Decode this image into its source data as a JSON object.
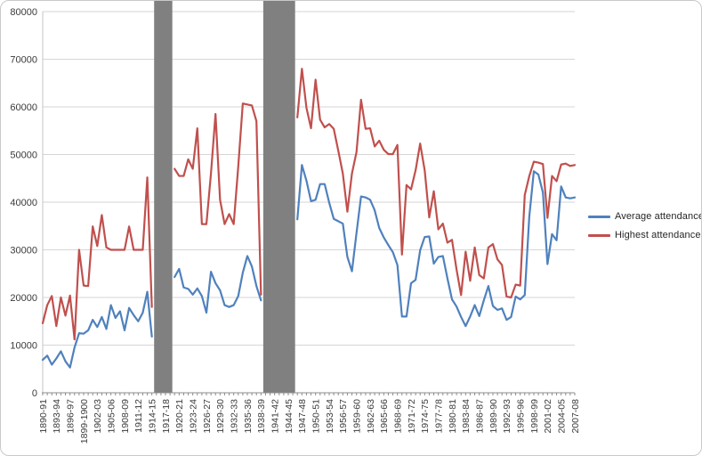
{
  "chart_data": {
    "type": "line",
    "title": "",
    "xlabel": "",
    "ylabel": "",
    "legend_position": "right",
    "grid": true,
    "background_color": "#FFFFFF",
    "gridline_color": "#D6D6D6",
    "axis_color": "#8C8C8C",
    "y_axis_line_color": "#C4C4C4",
    "text_color": "#3A3A3A",
    "band_color": "#808080",
    "y_axis": {
      "min": 0,
      "max": 80000,
      "step": 10000,
      "tick_labels": [
        "0",
        "10000",
        "20000",
        "30000",
        "40000",
        "50000",
        "60000",
        "70000",
        "80000"
      ]
    },
    "x_axis": {
      "label_every_n_points": 3,
      "tick_labels": [
        "1890-91",
        "1893-94",
        "1896-97",
        "1899-1900",
        "1902-03",
        "1905-06",
        "1908-09",
        "1911-12",
        "1914-15",
        "1917-18",
        "1920-21",
        "1923-24",
        "1926-27",
        "1929-30",
        "1932-33",
        "1935-36",
        "1938-39",
        "1941-42",
        "1944-45",
        "1947-48",
        "1950-51",
        "1953-54",
        "1956-57",
        "1959-60",
        "1962-63",
        "1965-66",
        "1968-69",
        "1971-72",
        "1974-75",
        "1977-78",
        "1980-81",
        "1983-84",
        "1986-87",
        "1989-90",
        "1992-93",
        "1995-96",
        "1998-99",
        "2001-02",
        "2004-05",
        "2007-08"
      ]
    },
    "no_data_bands": [
      {
        "start_index": 25,
        "end_index": 28
      },
      {
        "start_index": 49,
        "end_index": 55
      }
    ],
    "series": [
      {
        "name": "Average attendance",
        "color": "#4F81BD",
        "values": [
          6900,
          7800,
          5900,
          7200,
          8700,
          6600,
          5300,
          9500,
          12500,
          12400,
          13100,
          15300,
          13800,
          15900,
          13400,
          18400,
          15700,
          17100,
          13100,
          17800,
          16300,
          15000,
          16800,
          21200,
          11800,
          null,
          null,
          null,
          null,
          24300,
          26000,
          22100,
          21800,
          20600,
          21900,
          20300,
          16800,
          25400,
          23000,
          21500,
          18400,
          18000,
          18400,
          20300,
          25200,
          28700,
          26500,
          22400,
          19400,
          null,
          null,
          null,
          null,
          null,
          null,
          null,
          36400,
          47800,
          44500,
          40200,
          40500,
          43800,
          43800,
          39900,
          36500,
          36000,
          35500,
          28500,
          25500,
          33500,
          41200,
          41000,
          40500,
          38300,
          34600,
          32600,
          31000,
          29500,
          26800,
          16000,
          16000,
          23000,
          23700,
          29900,
          32700,
          32800,
          27100,
          28500,
          28700,
          24000,
          19600,
          18100,
          15900,
          14000,
          16000,
          18400,
          16100,
          19400,
          22400,
          18200,
          17400,
          17700,
          15300,
          15900,
          20200,
          19600,
          20500,
          37000,
          46500,
          45800,
          42000,
          27000,
          33300,
          32000,
          43300,
          41000,
          40800,
          41000
        ]
      },
      {
        "name": "Highest attendance",
        "color": "#C0504D",
        "values": [
          14600,
          18400,
          20300,
          14000,
          20000,
          16200,
          20400,
          11200,
          30000,
          22500,
          22400,
          34900,
          30800,
          37300,
          30500,
          30000,
          30000,
          30000,
          30000,
          34900,
          30000,
          30000,
          30000,
          45200,
          18000,
          null,
          null,
          null,
          null,
          47000,
          45500,
          45500,
          49000,
          47000,
          55500,
          35400,
          35400,
          46000,
          58500,
          40500,
          35400,
          37500,
          35400,
          47500,
          60700,
          60500,
          60300,
          57000,
          20600,
          null,
          null,
          null,
          null,
          null,
          null,
          null,
          57800,
          68000,
          59800,
          55500,
          65700,
          57300,
          55700,
          56400,
          55400,
          50800,
          46000,
          38000,
          46000,
          50500,
          61500,
          55400,
          55500,
          51700,
          52900,
          51000,
          50100,
          50100,
          52000,
          29000,
          43600,
          42700,
          46700,
          52300,
          46700,
          36800,
          42300,
          34300,
          35500,
          31500,
          32100,
          25900,
          20500,
          29600,
          23500,
          30500,
          24700,
          24000,
          30500,
          31200,
          28000,
          26800,
          20200,
          20000,
          22700,
          22500,
          41500,
          45500,
          48500,
          48300,
          48000,
          36700,
          45500,
          44400,
          47900,
          48100,
          47600,
          47800
        ]
      }
    ]
  }
}
